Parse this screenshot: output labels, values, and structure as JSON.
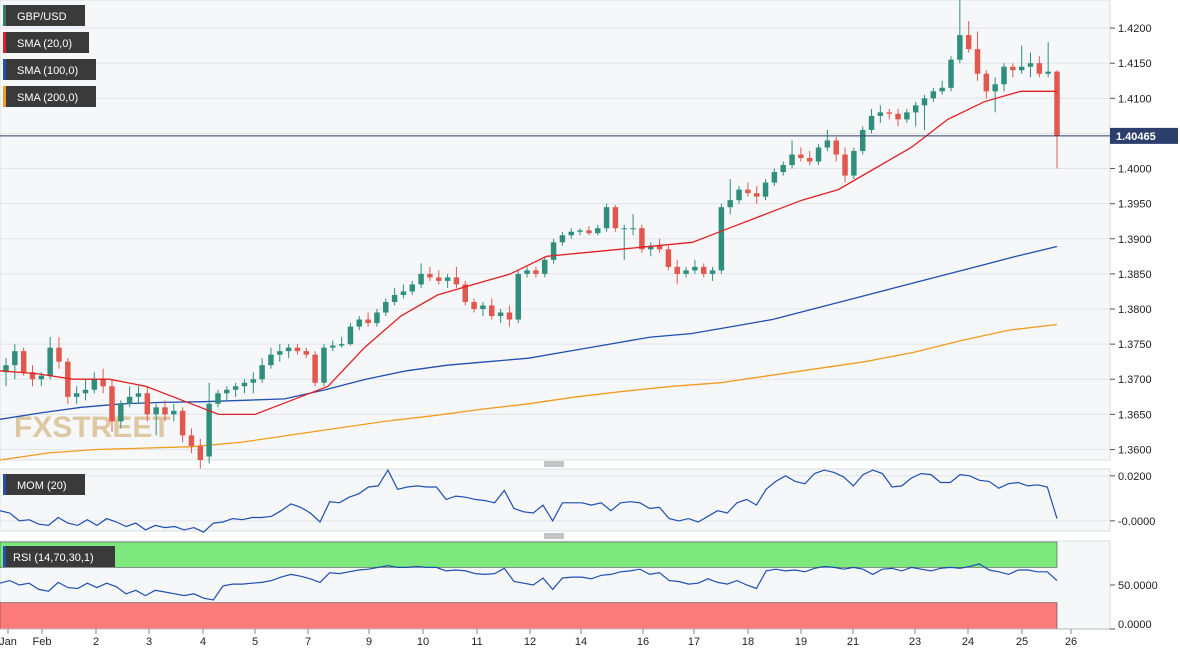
{
  "chart_data": {
    "type": "candlestick",
    "symbol": "GBP/USD",
    "last_price": "1.40465",
    "watermark": "FXSTREET",
    "x_labels": [
      "Jan",
      "Feb",
      "2",
      "3",
      "4",
      "5",
      "7",
      "9",
      "10",
      "11",
      "12",
      "14",
      "16",
      "17",
      "18",
      "19",
      "21",
      "23",
      "24",
      "25",
      "26"
    ],
    "y_ticks": [
      "1.4200",
      "1.4150",
      "1.4100",
      "1.4050",
      "1.4000",
      "1.3950",
      "1.3900",
      "1.3850",
      "1.3800",
      "1.3750",
      "1.3700",
      "1.3650",
      "1.3600"
    ],
    "ylim": [
      1.3585,
      1.424
    ],
    "indicators": [
      {
        "name": "SMA (20,0)",
        "color": "#e02020"
      },
      {
        "name": "SMA (100,0)",
        "color": "#1f4fb0"
      },
      {
        "name": "SMA (200,0)",
        "color": "#f29b1d"
      }
    ],
    "sma20": [
      1.3712,
      1.3708,
      1.37,
      1.37,
      1.369,
      1.367,
      1.365,
      1.365,
      1.367,
      1.369,
      1.3745,
      1.379,
      1.382,
      1.3835,
      1.385,
      1.3875,
      1.388,
      1.3885,
      1.389,
      1.3895,
      1.3915,
      1.3935,
      1.3955,
      1.397,
      1.4,
      1.403,
      1.407,
      1.4095,
      1.411,
      1.411
    ],
    "sma100": [
      1.3643,
      1.3652,
      1.366,
      1.3665,
      1.3667,
      1.3668,
      1.367,
      1.3672,
      1.3685,
      1.37,
      1.3712,
      1.372,
      1.3725,
      1.373,
      1.374,
      1.375,
      1.376,
      1.3765,
      1.3775,
      1.3785,
      1.38,
      1.3815,
      1.383,
      1.3845,
      1.386,
      1.3875,
      1.3889
    ],
    "sma200": [
      1.3585,
      1.3595,
      1.36,
      1.3602,
      1.3604,
      1.361,
      1.362,
      1.363,
      1.364,
      1.3648,
      1.3657,
      1.3665,
      1.3675,
      1.3683,
      1.369,
      1.3695,
      1.3705,
      1.3715,
      1.3725,
      1.3738,
      1.3755,
      1.377,
      1.3778
    ],
    "candles": [
      [
        1.371,
        1.373,
        1.369,
        1.372
      ],
      [
        1.372,
        1.375,
        1.37,
        1.374
      ],
      [
        1.374,
        1.3745,
        1.3705,
        1.371
      ],
      [
        1.371,
        1.372,
        1.369,
        1.37
      ],
      [
        1.37,
        1.371,
        1.369,
        1.3705
      ],
      [
        1.3705,
        1.376,
        1.37,
        1.3745
      ],
      [
        1.3745,
        1.376,
        1.3715,
        1.3725
      ],
      [
        1.3725,
        1.373,
        1.3665,
        1.3675
      ],
      [
        1.3675,
        1.369,
        1.3665,
        1.368
      ],
      [
        1.368,
        1.37,
        1.367,
        1.3685
      ],
      [
        1.3685,
        1.371,
        1.368,
        1.37
      ],
      [
        1.37,
        1.3715,
        1.368,
        1.369
      ],
      [
        1.369,
        1.37,
        1.3625,
        1.364
      ],
      [
        1.364,
        1.367,
        1.363,
        1.3665
      ],
      [
        1.3665,
        1.369,
        1.366,
        1.3675
      ],
      [
        1.3675,
        1.369,
        1.3665,
        1.368
      ],
      [
        1.368,
        1.369,
        1.364,
        1.365
      ],
      [
        1.365,
        1.3665,
        1.362,
        1.366
      ],
      [
        1.366,
        1.367,
        1.364,
        1.365
      ],
      [
        1.365,
        1.3665,
        1.364,
        1.3655
      ],
      [
        1.3655,
        1.366,
        1.361,
        1.362
      ],
      [
        1.362,
        1.363,
        1.3595,
        1.3605
      ],
      [
        1.3605,
        1.3615,
        1.357,
        1.3585
      ],
      [
        1.359,
        1.3695,
        1.358,
        1.3665
      ],
      [
        1.3665,
        1.3685,
        1.366,
        1.368
      ],
      [
        1.368,
        1.369,
        1.367,
        1.3685
      ],
      [
        1.3685,
        1.3695,
        1.3675,
        1.369
      ],
      [
        1.369,
        1.37,
        1.368,
        1.3695
      ],
      [
        1.3695,
        1.371,
        1.368,
        1.37
      ],
      [
        1.37,
        1.373,
        1.3695,
        1.372
      ],
      [
        1.372,
        1.3745,
        1.3715,
        1.3735
      ],
      [
        1.3735,
        1.375,
        1.3725,
        1.374
      ],
      [
        1.374,
        1.375,
        1.373,
        1.3745
      ],
      [
        1.3745,
        1.375,
        1.3735,
        1.374
      ],
      [
        1.374,
        1.3745,
        1.373,
        1.3735
      ],
      [
        1.3735,
        1.374,
        1.369,
        1.3695
      ],
      [
        1.3695,
        1.375,
        1.369,
        1.3745
      ],
      [
        1.3745,
        1.3755,
        1.374,
        1.3748
      ],
      [
        1.3748,
        1.376,
        1.3745,
        1.375
      ],
      [
        1.375,
        1.378,
        1.3748,
        1.3775
      ],
      [
        1.3775,
        1.379,
        1.377,
        1.3785
      ],
      [
        1.3785,
        1.3795,
        1.3775,
        1.378
      ],
      [
        1.378,
        1.38,
        1.3775,
        1.3795
      ],
      [
        1.3795,
        1.3815,
        1.379,
        1.381
      ],
      [
        1.381,
        1.383,
        1.3805,
        1.382
      ],
      [
        1.382,
        1.3835,
        1.3815,
        1.3825
      ],
      [
        1.3825,
        1.384,
        1.382,
        1.3835
      ],
      [
        1.3835,
        1.3865,
        1.383,
        1.385
      ],
      [
        1.385,
        1.386,
        1.384,
        1.3845
      ],
      [
        1.3845,
        1.3855,
        1.3835,
        1.384
      ],
      [
        1.384,
        1.385,
        1.383,
        1.3845
      ],
      [
        1.3845,
        1.386,
        1.383,
        1.3835
      ],
      [
        1.3835,
        1.384,
        1.3805,
        1.381
      ],
      [
        1.381,
        1.3815,
        1.3795,
        1.38
      ],
      [
        1.38,
        1.381,
        1.379,
        1.3805
      ],
      [
        1.3805,
        1.3815,
        1.3785,
        1.379
      ],
      [
        1.379,
        1.38,
        1.378,
        1.3795
      ],
      [
        1.3795,
        1.3805,
        1.3775,
        1.3785
      ],
      [
        1.3785,
        1.3855,
        1.378,
        1.385
      ],
      [
        1.385,
        1.386,
        1.3845,
        1.3855
      ],
      [
        1.3855,
        1.386,
        1.3845,
        1.385
      ],
      [
        1.385,
        1.3875,
        1.3845,
        1.387
      ],
      [
        1.387,
        1.39,
        1.3865,
        1.3895
      ],
      [
        1.3895,
        1.391,
        1.389,
        1.3905
      ],
      [
        1.3905,
        1.3915,
        1.39,
        1.391
      ],
      [
        1.391,
        1.3915,
        1.3905,
        1.3912
      ],
      [
        1.3912,
        1.3918,
        1.3905,
        1.3908
      ],
      [
        1.3908,
        1.392,
        1.3905,
        1.3915
      ],
      [
        1.3915,
        1.395,
        1.391,
        1.3945
      ],
      [
        1.3945,
        1.3948,
        1.391,
        1.3915
      ],
      [
        1.3915,
        1.392,
        1.387,
        1.3915
      ],
      [
        1.3915,
        1.3935,
        1.3905,
        1.3915
      ],
      [
        1.3915,
        1.392,
        1.388,
        1.3885
      ],
      [
        1.3885,
        1.3895,
        1.3875,
        1.389
      ],
      [
        1.389,
        1.39,
        1.388,
        1.3885
      ],
      [
        1.3885,
        1.389,
        1.3855,
        1.386
      ],
      [
        1.386,
        1.387,
        1.3835,
        1.385
      ],
      [
        1.385,
        1.386,
        1.3845,
        1.3855
      ],
      [
        1.3855,
        1.387,
        1.385,
        1.386
      ],
      [
        1.386,
        1.3865,
        1.3845,
        1.385
      ],
      [
        1.385,
        1.386,
        1.384,
        1.3855
      ],
      [
        1.3855,
        1.395,
        1.385,
        1.3945
      ],
      [
        1.3945,
        1.3985,
        1.3935,
        1.3955
      ],
      [
        1.3955,
        1.3975,
        1.395,
        1.397
      ],
      [
        1.397,
        1.398,
        1.396,
        1.3965
      ],
      [
        1.3965,
        1.3975,
        1.395,
        1.396
      ],
      [
        1.396,
        1.3985,
        1.3955,
        1.398
      ],
      [
        1.398,
        1.4,
        1.3975,
        1.3995
      ],
      [
        1.3995,
        1.401,
        1.399,
        1.4005
      ],
      [
        1.4005,
        1.404,
        1.4,
        1.402
      ],
      [
        1.402,
        1.403,
        1.401,
        1.4015
      ],
      [
        1.4015,
        1.4025,
        1.4005,
        1.401
      ],
      [
        1.401,
        1.4035,
        1.4005,
        1.403
      ],
      [
        1.403,
        1.4055,
        1.4025,
        1.404
      ],
      [
        1.404,
        1.4045,
        1.401,
        1.402
      ],
      [
        1.402,
        1.403,
        1.398,
        1.399
      ],
      [
        1.399,
        1.403,
        1.3985,
        1.4025
      ],
      [
        1.4025,
        1.406,
        1.402,
        1.4055
      ],
      [
        1.4055,
        1.4085,
        1.405,
        1.4075
      ],
      [
        1.4075,
        1.409,
        1.4065,
        1.408
      ],
      [
        1.408,
        1.4085,
        1.407,
        1.4078
      ],
      [
        1.4078,
        1.4085,
        1.406,
        1.407
      ],
      [
        1.407,
        1.4085,
        1.4065,
        1.408
      ],
      [
        1.408,
        1.4095,
        1.406,
        1.409
      ],
      [
        1.409,
        1.4105,
        1.4055,
        1.41
      ],
      [
        1.41,
        1.4115,
        1.4095,
        1.411
      ],
      [
        1.411,
        1.4125,
        1.4105,
        1.4115
      ],
      [
        1.4115,
        1.416,
        1.411,
        1.4155
      ],
      [
        1.4155,
        1.424,
        1.415,
        1.419
      ],
      [
        1.419,
        1.421,
        1.4165,
        1.417
      ],
      [
        1.417,
        1.4195,
        1.4125,
        1.4135
      ],
      [
        1.4135,
        1.414,
        1.41,
        1.411
      ],
      [
        1.411,
        1.413,
        1.408,
        1.412
      ],
      [
        1.412,
        1.415,
        1.411,
        1.4145
      ],
      [
        1.4145,
        1.415,
        1.413,
        1.414
      ],
      [
        1.414,
        1.4175,
        1.4135,
        1.4145
      ],
      [
        1.4145,
        1.4165,
        1.413,
        1.415
      ],
      [
        1.415,
        1.416,
        1.413,
        1.4135
      ],
      [
        1.4135,
        1.418,
        1.413,
        1.4138
      ],
      [
        1.4138,
        1.414,
        1.4,
        1.4047
      ]
    ],
    "mom": {
      "name": "MOM (20)",
      "y_ticks": [
        "0.0200",
        "-0.0000"
      ],
      "ylim": [
        -0.0045,
        0.023
      ],
      "values": [
        0.0045,
        0.0035,
        0.0,
        0.0005,
        -0.0015,
        -0.002,
        0.0015,
        -0.001,
        -0.002,
        0.0005,
        -0.002,
        0.001,
        -0.0005,
        -0.0025,
        -0.001,
        -0.004,
        -0.002,
        -0.003,
        -0.0025,
        -0.004,
        -0.003,
        -0.005,
        -0.001,
        -0.0005,
        0.001,
        0.0005,
        0.0015,
        0.0015,
        0.002,
        0.0045,
        0.0075,
        0.006,
        0.0035,
        -0.0005,
        0.0085,
        0.008,
        0.0105,
        0.012,
        0.015,
        0.0155,
        0.0225,
        0.014,
        0.015,
        0.0155,
        0.015,
        0.015,
        0.0095,
        0.011,
        0.0105,
        0.0095,
        0.009,
        0.008,
        0.0135,
        0.0055,
        0.004,
        0.0035,
        0.007,
        0.0,
        0.008,
        0.008,
        0.008,
        0.007,
        0.008,
        0.0045,
        0.008,
        0.0085,
        0.008,
        0.0055,
        0.006,
        0.001,
        0.0,
        0.001,
        -0.0005,
        0.002,
        0.0045,
        0.0035,
        0.008,
        0.0095,
        0.007,
        0.014,
        0.0175,
        0.02,
        0.0175,
        0.0165,
        0.021,
        0.0225,
        0.0215,
        0.0195,
        0.0155,
        0.0205,
        0.0225,
        0.021,
        0.015,
        0.0155,
        0.019,
        0.021,
        0.0205,
        0.017,
        0.017,
        0.0205,
        0.02,
        0.018,
        0.0175,
        0.0145,
        0.0165,
        0.017,
        0.0155,
        0.016,
        0.015,
        0.001
      ]
    },
    "rsi": {
      "name": "RSI (14,70,30,1)",
      "y_ticks": [
        "50.0000",
        "0.0000"
      ],
      "ylim": [
        0,
        100
      ],
      "upper": 70,
      "lower": 30,
      "values": [
        52,
        55,
        50,
        52,
        45,
        43,
        53,
        47,
        46,
        52,
        47,
        52,
        48,
        40,
        44,
        38,
        44,
        42,
        40,
        38,
        40,
        35,
        33,
        49,
        51,
        51,
        52,
        53,
        55,
        59,
        62,
        60,
        57,
        53,
        64,
        63,
        65,
        67,
        68,
        70,
        72,
        70,
        70,
        71,
        70,
        70,
        66,
        67,
        66,
        63,
        62,
        63,
        69,
        54,
        52,
        50,
        58,
        45,
        58,
        59,
        59,
        57,
        61,
        62,
        65,
        66,
        68,
        62,
        64,
        55,
        54,
        51,
        52,
        57,
        53,
        51,
        55,
        50,
        46,
        66,
        68,
        66,
        67,
        65,
        69,
        71,
        70,
        68,
        70,
        68,
        62,
        68,
        69,
        66,
        70,
        68,
        66,
        69,
        70,
        69,
        71,
        74,
        67,
        65,
        62,
        67,
        67,
        65,
        65,
        55
      ]
    }
  }
}
